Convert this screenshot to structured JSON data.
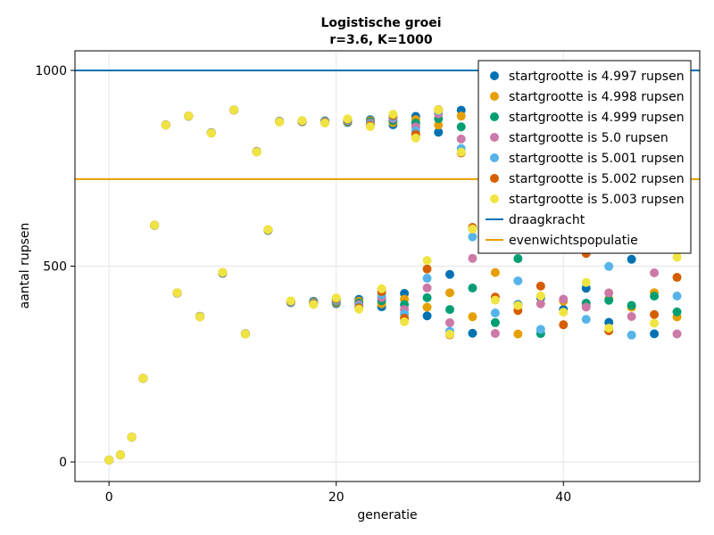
{
  "chart_data": {
    "type": "scatter",
    "title": "Logistische groei",
    "subtitle": "r=3.6, K=1000",
    "xlabel": "generatie",
    "ylabel": "aantal rupsen",
    "xlim": [
      -3,
      52
    ],
    "ylim": [
      -50,
      1050
    ],
    "xticks": [
      0,
      20,
      40
    ],
    "yticks": [
      0,
      500,
      1000
    ],
    "grid": true,
    "legend_position": "top-right",
    "x": [
      0,
      1,
      2,
      3,
      4,
      5,
      6,
      7,
      8,
      9,
      10,
      11,
      12,
      13,
      14,
      15,
      16,
      17,
      18,
      19,
      20,
      21,
      22,
      23,
      24,
      25,
      26,
      27,
      28,
      29,
      30,
      31,
      32,
      33,
      34,
      35,
      36,
      37,
      38,
      39,
      40,
      41,
      42,
      43,
      44,
      45,
      46,
      47,
      48,
      49,
      50
    ],
    "series": [
      {
        "name": "startgrootte is 4.997 rupsen",
        "color": "#0072b2",
        "r0": 4.997
      },
      {
        "name": "startgrootte is 4.998 rupsen",
        "color": "#e69f00",
        "r0": 4.998
      },
      {
        "name": "startgrootte is 4.999 rupsen",
        "color": "#009e73",
        "r0": 4.999
      },
      {
        "name": "startgrootte is 5.0 rupsen",
        "color": "#cc79a7",
        "r0": 5.0
      },
      {
        "name": "startgrootte is 5.001 rupsen",
        "color": "#56b4e9",
        "r0": 5.001
      },
      {
        "name": "startgrootte is 5.002 rupsen",
        "color": "#d55e00",
        "r0": 5.002
      },
      {
        "name": "startgrootte is 5.003 rupsen",
        "color": "#f0e442",
        "r0": 5.003
      }
    ],
    "hlines": [
      {
        "name": "draagkracht",
        "y": 1000,
        "color": "#0072b2"
      },
      {
        "name": "evenwichtspopulatie",
        "y": 722.2,
        "color": "#e69f00"
      }
    ],
    "model": {
      "r": 3.6,
      "K": 1000
    }
  }
}
